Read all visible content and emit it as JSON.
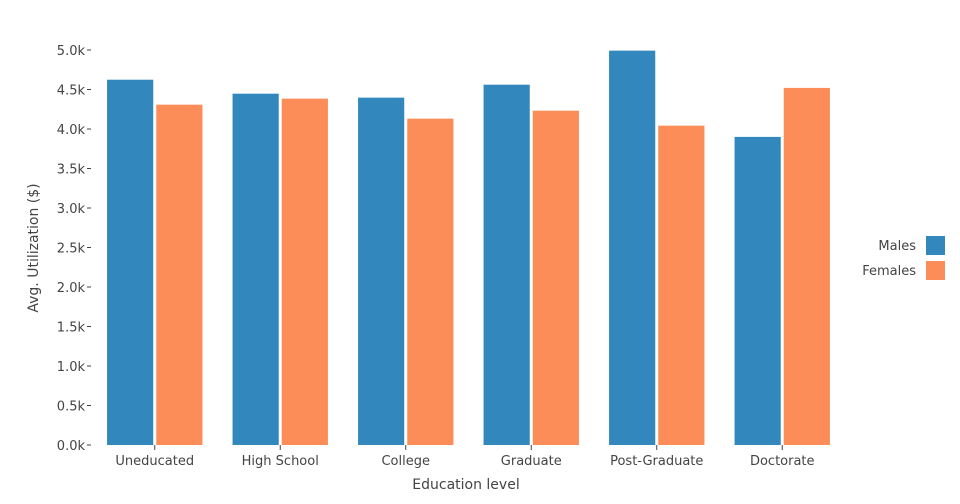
{
  "chart_data": {
    "type": "bar",
    "title": "",
    "xlabel": "Education level",
    "ylabel": "Avg. Utilization ($)",
    "ylim": [
      0,
      5000
    ],
    "yticks": [
      0,
      500,
      1000,
      1500,
      2000,
      2500,
      3000,
      3500,
      4000,
      4500,
      5000
    ],
    "ytick_labels": [
      "0.0k",
      "0.5k",
      "1.0k",
      "1.5k",
      "2.0k",
      "2.5k",
      "3.0k",
      "3.5k",
      "4.0k",
      "4.5k",
      "5.0k"
    ],
    "categories": [
      "Uneducated",
      "High School",
      "College",
      "Graduate",
      "Post-Graduate",
      "Doctorate"
    ],
    "series": [
      {
        "name": "Males",
        "color": "#3288bd",
        "values": [
          4624,
          4447,
          4397,
          4561,
          4992,
          3900
        ]
      },
      {
        "name": "Females",
        "color": "#fc8d59",
        "values": [
          4308,
          4384,
          4131,
          4232,
          4042,
          4520
        ]
      }
    ],
    "legend_position": "right",
    "grid": false
  }
}
